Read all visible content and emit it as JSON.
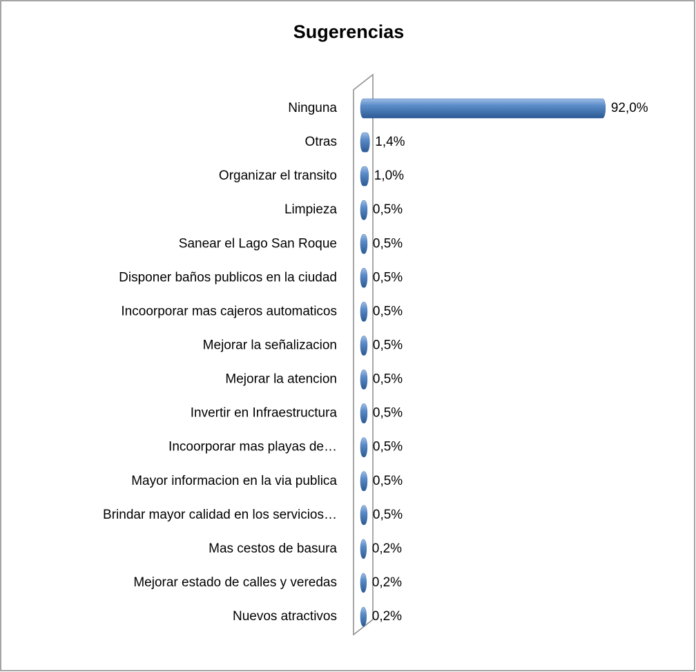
{
  "chart_data": {
    "type": "bar",
    "title": "Sugerencias",
    "categories": [
      "Ninguna",
      "Otras",
      "Organizar el transito",
      "Limpieza",
      "Sanear el Lago San Roque",
      "Disponer baños publicos en la ciudad",
      "Incoorporar mas cajeros automaticos",
      "Mejorar la señalizacion",
      "Mejorar la atencion",
      "Invertir en Infraestructura",
      "Incoorporar mas playas de…",
      "Mayor informacion en la via publica",
      "Brindar mayor calidad en los servicios…",
      "Mas cestos de basura",
      "Mejorar estado de calles y veredas",
      "Nuevos atractivos"
    ],
    "values": [
      92.0,
      1.4,
      1.0,
      0.5,
      0.5,
      0.5,
      0.5,
      0.5,
      0.5,
      0.5,
      0.5,
      0.5,
      0.5,
      0.2,
      0.2,
      0.2
    ],
    "value_labels": [
      "92,0%",
      "1,4%",
      "1,0%",
      "0,5%",
      "0,5%",
      "0,5%",
      "0,5%",
      "0,5%",
      "0,5%",
      "0,5%",
      "0,5%",
      "0,5%",
      "0,5%",
      "0,2%",
      "0,2%",
      "0,2%"
    ],
    "color": "#4f81bd"
  }
}
